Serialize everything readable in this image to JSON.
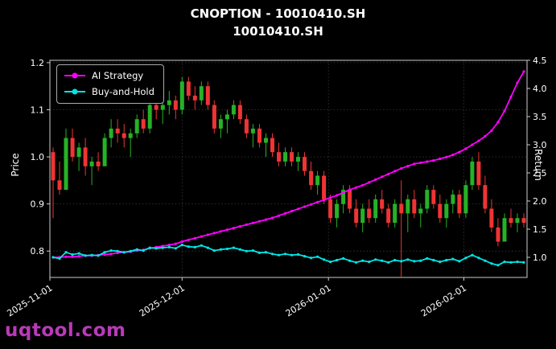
{
  "title": {
    "line1": "CNOPTION - 10010410.SH",
    "line2": "10010410.SH"
  },
  "watermark": "uqtool.com",
  "chart_data": {
    "type": "candlestick+line",
    "title": "CNOPTION - 10010410.SH",
    "subtitle": "10010410.SH",
    "grid": true,
    "legend_position": "upper left",
    "left_axis": {
      "label": "Price",
      "ticks": [
        0.8,
        0.9,
        1.0,
        1.1,
        1.2
      ],
      "range": [
        0.744,
        1.205
      ]
    },
    "right_axis": {
      "label": "Return",
      "ticks": [
        1.0,
        1.5,
        2.0,
        2.5,
        3.0,
        3.5,
        4.0,
        4.5
      ],
      "range": [
        0.643,
        4.5
      ]
    },
    "x_axis": {
      "tick_labels": [
        "2025-11-01",
        "2025-12-01",
        "2026-01-01",
        "2026-02-01"
      ],
      "tick_positions": [
        -0.7,
        20,
        42.7,
        63.7
      ]
    },
    "colors": {
      "up": "#26b226",
      "down": "#ef3434",
      "ai": "#ff00ff",
      "bh": "#00e5e5",
      "grid": "#6a6a6a",
      "spine": "#cccccc",
      "bg": "#000000",
      "text": "#ffffff",
      "watermark": "#b93ab9"
    },
    "dates": [
      "2025-11-03",
      "2025-11-04",
      "2025-11-05",
      "2025-11-06",
      "2025-11-07",
      "2025-11-10",
      "2025-11-11",
      "2025-11-12",
      "2025-11-13",
      "2025-11-14",
      "2025-11-17",
      "2025-11-18",
      "2025-11-19",
      "2025-11-20",
      "2025-11-21",
      "2025-11-24",
      "2025-11-25",
      "2025-11-26",
      "2025-11-27",
      "2025-11-28",
      "2025-12-01",
      "2025-12-02",
      "2025-12-03",
      "2025-12-04",
      "2025-12-05",
      "2025-12-08",
      "2025-12-09",
      "2025-12-10",
      "2025-12-11",
      "2025-12-12",
      "2025-12-15",
      "2025-12-16",
      "2025-12-17",
      "2025-12-18",
      "2025-12-19",
      "2025-12-22",
      "2025-12-23",
      "2025-12-24",
      "2025-12-25",
      "2025-12-26",
      "2025-12-29",
      "2025-12-30",
      "2025-12-31",
      "2026-01-02",
      "2026-01-05",
      "2026-01-06",
      "2026-01-07",
      "2026-01-08",
      "2026-01-09",
      "2026-01-12",
      "2026-01-13",
      "2026-01-14",
      "2026-01-15",
      "2026-01-16",
      "2026-01-19",
      "2026-01-20",
      "2026-01-21",
      "2026-01-22",
      "2026-01-23",
      "2026-01-26",
      "2026-01-27",
      "2026-01-28",
      "2026-01-29",
      "2026-01-30",
      "2026-02-02",
      "2026-02-03",
      "2026-02-04",
      "2026-02-05",
      "2026-02-06",
      "2026-02-09",
      "2026-02-10",
      "2026-02-11",
      "2026-02-12",
      "2026-02-13"
    ],
    "candles": [
      [
        1.01,
        1.02,
        0.87,
        0.95
      ],
      [
        0.95,
        0.99,
        0.92,
        0.93
      ],
      [
        0.93,
        1.06,
        0.93,
        1.04
      ],
      [
        1.04,
        1.06,
        0.99,
        1.0
      ],
      [
        1.0,
        1.03,
        0.97,
        1.02
      ],
      [
        1.02,
        1.04,
        0.96,
        0.98
      ],
      [
        0.98,
        1.0,
        0.94,
        0.99
      ],
      [
        0.99,
        1.01,
        0.97,
        0.98
      ],
      [
        0.98,
        1.05,
        0.98,
        1.04
      ],
      [
        1.04,
        1.08,
        1.02,
        1.06
      ],
      [
        1.06,
        1.08,
        1.03,
        1.05
      ],
      [
        1.05,
        1.07,
        1.02,
        1.04
      ],
      [
        1.04,
        1.06,
        1.0,
        1.05
      ],
      [
        1.05,
        1.09,
        1.04,
        1.08
      ],
      [
        1.08,
        1.1,
        1.05,
        1.06
      ],
      [
        1.06,
        1.12,
        1.05,
        1.11
      ],
      [
        1.11,
        1.13,
        1.08,
        1.1
      ],
      [
        1.1,
        1.12,
        1.07,
        1.11
      ],
      [
        1.11,
        1.14,
        1.09,
        1.12
      ],
      [
        1.12,
        1.13,
        1.08,
        1.1
      ],
      [
        1.1,
        1.17,
        1.09,
        1.16
      ],
      [
        1.16,
        1.17,
        1.12,
        1.13
      ],
      [
        1.13,
        1.15,
        1.1,
        1.12
      ],
      [
        1.12,
        1.16,
        1.11,
        1.15
      ],
      [
        1.15,
        1.16,
        1.1,
        1.11
      ],
      [
        1.11,
        1.12,
        1.05,
        1.06
      ],
      [
        1.06,
        1.09,
        1.04,
        1.08
      ],
      [
        1.08,
        1.1,
        1.05,
        1.09
      ],
      [
        1.09,
        1.12,
        1.08,
        1.11
      ],
      [
        1.11,
        1.12,
        1.07,
        1.08
      ],
      [
        1.08,
        1.09,
        1.04,
        1.05
      ],
      [
        1.05,
        1.07,
        1.02,
        1.06
      ],
      [
        1.06,
        1.07,
        1.02,
        1.03
      ],
      [
        1.03,
        1.05,
        1.0,
        1.04
      ],
      [
        1.04,
        1.05,
        1.0,
        1.01
      ],
      [
        1.01,
        1.03,
        0.98,
        0.99
      ],
      [
        0.99,
        1.02,
        0.98,
        1.01
      ],
      [
        1.01,
        1.02,
        0.98,
        0.99
      ],
      [
        0.99,
        1.01,
        0.97,
        1.0
      ],
      [
        1.0,
        1.01,
        0.96,
        0.97
      ],
      [
        0.97,
        0.99,
        0.93,
        0.94
      ],
      [
        0.94,
        0.97,
        0.92,
        0.96
      ],
      [
        0.96,
        0.97,
        0.9,
        0.91
      ],
      [
        0.91,
        0.92,
        0.86,
        0.87
      ],
      [
        0.87,
        0.91,
        0.85,
        0.9
      ],
      [
        0.9,
        0.94,
        0.88,
        0.93
      ],
      [
        0.93,
        0.94,
        0.88,
        0.89
      ],
      [
        0.89,
        0.91,
        0.85,
        0.86
      ],
      [
        0.86,
        0.9,
        0.84,
        0.89
      ],
      [
        0.89,
        0.91,
        0.86,
        0.87
      ],
      [
        0.87,
        0.92,
        0.86,
        0.91
      ],
      [
        0.91,
        0.93,
        0.88,
        0.89
      ],
      [
        0.89,
        0.9,
        0.85,
        0.86
      ],
      [
        0.86,
        0.91,
        0.85,
        0.9
      ],
      [
        0.9,
        0.95,
        0.63,
        0.88
      ],
      [
        0.88,
        0.92,
        0.84,
        0.91
      ],
      [
        0.91,
        0.93,
        0.87,
        0.88
      ],
      [
        0.88,
        0.9,
        0.85,
        0.89
      ],
      [
        0.89,
        0.94,
        0.88,
        0.93
      ],
      [
        0.93,
        0.94,
        0.89,
        0.9
      ],
      [
        0.9,
        0.92,
        0.86,
        0.87
      ],
      [
        0.87,
        0.91,
        0.85,
        0.9
      ],
      [
        0.9,
        0.93,
        0.88,
        0.92
      ],
      [
        0.92,
        0.93,
        0.87,
        0.88
      ],
      [
        0.88,
        0.95,
        0.87,
        0.94
      ],
      [
        0.94,
        1.0,
        0.93,
        0.99
      ],
      [
        0.99,
        1.01,
        0.93,
        0.94
      ],
      [
        0.94,
        0.96,
        0.88,
        0.89
      ],
      [
        0.89,
        0.91,
        0.84,
        0.85
      ],
      [
        0.85,
        0.87,
        0.81,
        0.82
      ],
      [
        0.82,
        0.88,
        0.82,
        0.87
      ],
      [
        0.87,
        0.89,
        0.85,
        0.86
      ],
      [
        0.86,
        0.88,
        0.84,
        0.87
      ],
      [
        0.87,
        0.88,
        0.85,
        0.86
      ]
    ],
    "series": [
      {
        "name": "AI Strategy",
        "axis": "right",
        "color": "#ff00ff",
        "values": [
          1.0,
          1.0,
          1.01,
          1.01,
          1.02,
          1.03,
          1.03,
          1.04,
          1.05,
          1.06,
          1.08,
          1.09,
          1.1,
          1.12,
          1.13,
          1.16,
          1.18,
          1.2,
          1.22,
          1.24,
          1.28,
          1.31,
          1.34,
          1.37,
          1.4,
          1.43,
          1.46,
          1.49,
          1.52,
          1.55,
          1.58,
          1.61,
          1.64,
          1.67,
          1.7,
          1.74,
          1.78,
          1.82,
          1.86,
          1.9,
          1.94,
          1.98,
          2.02,
          2.06,
          2.1,
          2.15,
          2.2,
          2.24,
          2.28,
          2.33,
          2.38,
          2.43,
          2.48,
          2.53,
          2.58,
          2.62,
          2.66,
          2.68,
          2.7,
          2.72,
          2.75,
          2.78,
          2.82,
          2.87,
          2.93,
          3.0,
          3.07,
          3.15,
          3.25,
          3.4,
          3.6,
          3.85,
          4.1,
          4.3
        ]
      },
      {
        "name": "Buy-and-Hold",
        "axis": "right",
        "color": "#00e5e5",
        "values": [
          1.0,
          0.98,
          1.09,
          1.05,
          1.07,
          1.03,
          1.04,
          1.03,
          1.09,
          1.12,
          1.11,
          1.09,
          1.11,
          1.14,
          1.12,
          1.17,
          1.16,
          1.17,
          1.18,
          1.16,
          1.22,
          1.19,
          1.18,
          1.21,
          1.17,
          1.12,
          1.14,
          1.15,
          1.17,
          1.14,
          1.11,
          1.12,
          1.08,
          1.09,
          1.06,
          1.04,
          1.06,
          1.04,
          1.05,
          1.02,
          0.99,
          1.01,
          0.96,
          0.92,
          0.95,
          0.98,
          0.94,
          0.91,
          0.94,
          0.92,
          0.96,
          0.94,
          0.91,
          0.95,
          0.93,
          0.96,
          0.93,
          0.94,
          0.98,
          0.95,
          0.92,
          0.95,
          0.97,
          0.93,
          0.99,
          1.04,
          0.99,
          0.94,
          0.89,
          0.86,
          0.92,
          0.91,
          0.92,
          0.91
        ]
      }
    ]
  }
}
